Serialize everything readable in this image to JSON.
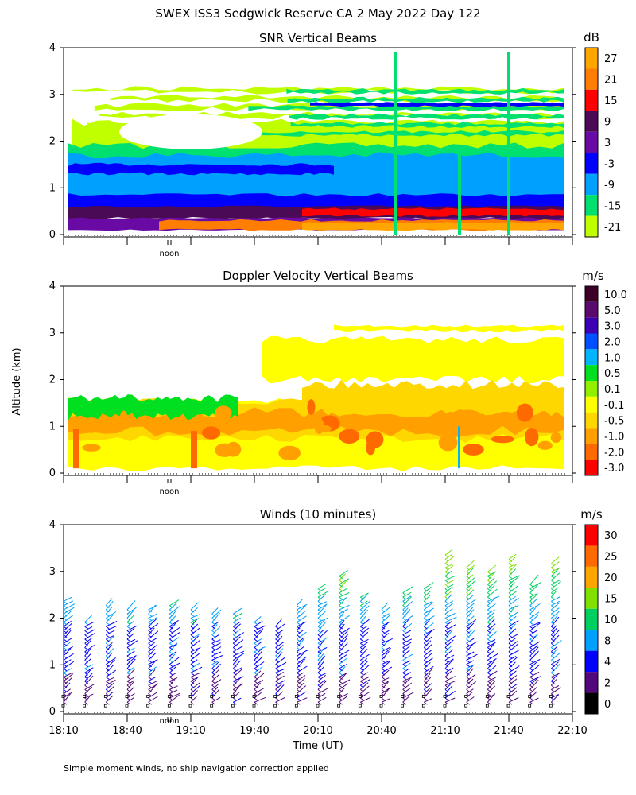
{
  "title": "SWEX ISS3 Sedgwick Reserve CA   2 May 2022 Day 122",
  "footer": "Simple moment winds, no ship navigation correction applied",
  "y_axis_label": "Altitude (km)",
  "x_axis_label": "Time (UT)",
  "noon_label": "noon",
  "chart_data": [
    {
      "type": "heatmap",
      "title": "SNR Vertical Beams",
      "unit": "dB",
      "ylim": [
        0,
        4
      ],
      "yticks": [
        "0",
        "1",
        "2",
        "3",
        "4"
      ],
      "colorbar_labels": [
        "27",
        "21",
        "15",
        "9",
        "3",
        "-3",
        "-9",
        "-15",
        "-21"
      ],
      "colorbar_colors": [
        "#ffa500",
        "#ff7d00",
        "#ff0000",
        "#4b0a55",
        "#6a0aa5",
        "#0000ff",
        "#00a0ff",
        "#00e070",
        "#c0ff00"
      ],
      "layers": [
        {
          "range_km": [
            0.05,
            0.25
          ],
          "value_db": "15 to 27"
        },
        {
          "range_km": [
            0.25,
            0.55
          ],
          "value_db": "3 to 15"
        },
        {
          "range_km": [
            0.55,
            1.5
          ],
          "value_db": "-9 to 3"
        },
        {
          "range_km": [
            1.5,
            2.2
          ],
          "value_db": "-21 to -9"
        },
        {
          "range_km": [
            2.2,
            3.2
          ],
          "value_db": "-21 to -15"
        }
      ]
    },
    {
      "type": "heatmap",
      "title": "Doppler Velocity Vertical Beams",
      "unit": "m/s",
      "ylim": [
        0,
        4
      ],
      "yticks": [
        "0",
        "1",
        "2",
        "3",
        "4"
      ],
      "colorbar_labels": [
        "10.0",
        "5.0",
        "3.0",
        "2.0",
        "1.0",
        "0.5",
        "0.1",
        "-0.1",
        "-0.5",
        "-1.0",
        "-2.0",
        "-3.0"
      ],
      "colorbar_colors": [
        "#3c0028",
        "#5a0a6e",
        "#3c00b4",
        "#0050ff",
        "#00b4ff",
        "#00e020",
        "#90f000",
        "#ffff00",
        "#ffd700",
        "#ffa000",
        "#ff6a00",
        "#ff0000"
      ],
      "layers": [
        {
          "range_km": [
            0.1,
            1.5
          ],
          "value_ms": "-0.1 to -1.0"
        },
        {
          "range_km": [
            1.5,
            2.0
          ],
          "value_ms": "-0.5 to 0.5"
        },
        {
          "range_km": [
            2.0,
            3.1
          ],
          "value_ms": "-0.1 to 0.1"
        }
      ]
    },
    {
      "type": "scatter",
      "title": "Winds (10 minutes)",
      "unit": "m/s",
      "ylim": [
        0,
        4
      ],
      "yticks": [
        "0",
        "1",
        "2",
        "3",
        "4"
      ],
      "colorbar_labels": [
        "30",
        "25",
        "20",
        "15",
        "10",
        "8",
        "4",
        "2",
        "0"
      ],
      "colorbar_colors": [
        "#ff0000",
        "#ff6a00",
        "#ffa500",
        "#80e000",
        "#00d060",
        "#00a0ff",
        "#0000ff",
        "#50087a",
        "#000000"
      ],
      "x_ticks": [
        "18:10",
        "18:40",
        "19:10",
        "19:40",
        "20:10",
        "20:40",
        "21:10",
        "21:40",
        "22:10"
      ],
      "profile_times": [
        "18:10",
        "18:20",
        "18:30",
        "18:40",
        "18:50",
        "19:00",
        "19:10",
        "19:20",
        "19:30",
        "19:40",
        "19:50",
        "20:00",
        "20:10",
        "20:20",
        "20:30",
        "20:40",
        "20:50",
        "21:00",
        "21:10",
        "21:20",
        "21:30",
        "21:40",
        "21:50",
        "22:00"
      ],
      "max_altitude_km": [
        2.4,
        2.0,
        2.3,
        2.2,
        2.2,
        2.3,
        2.2,
        2.1,
        2.1,
        2.0,
        1.9,
        2.3,
        2.7,
        2.9,
        2.5,
        2.2,
        2.6,
        2.7,
        3.4,
        3.1,
        3.0,
        3.3,
        2.8,
        3.2
      ]
    }
  ]
}
